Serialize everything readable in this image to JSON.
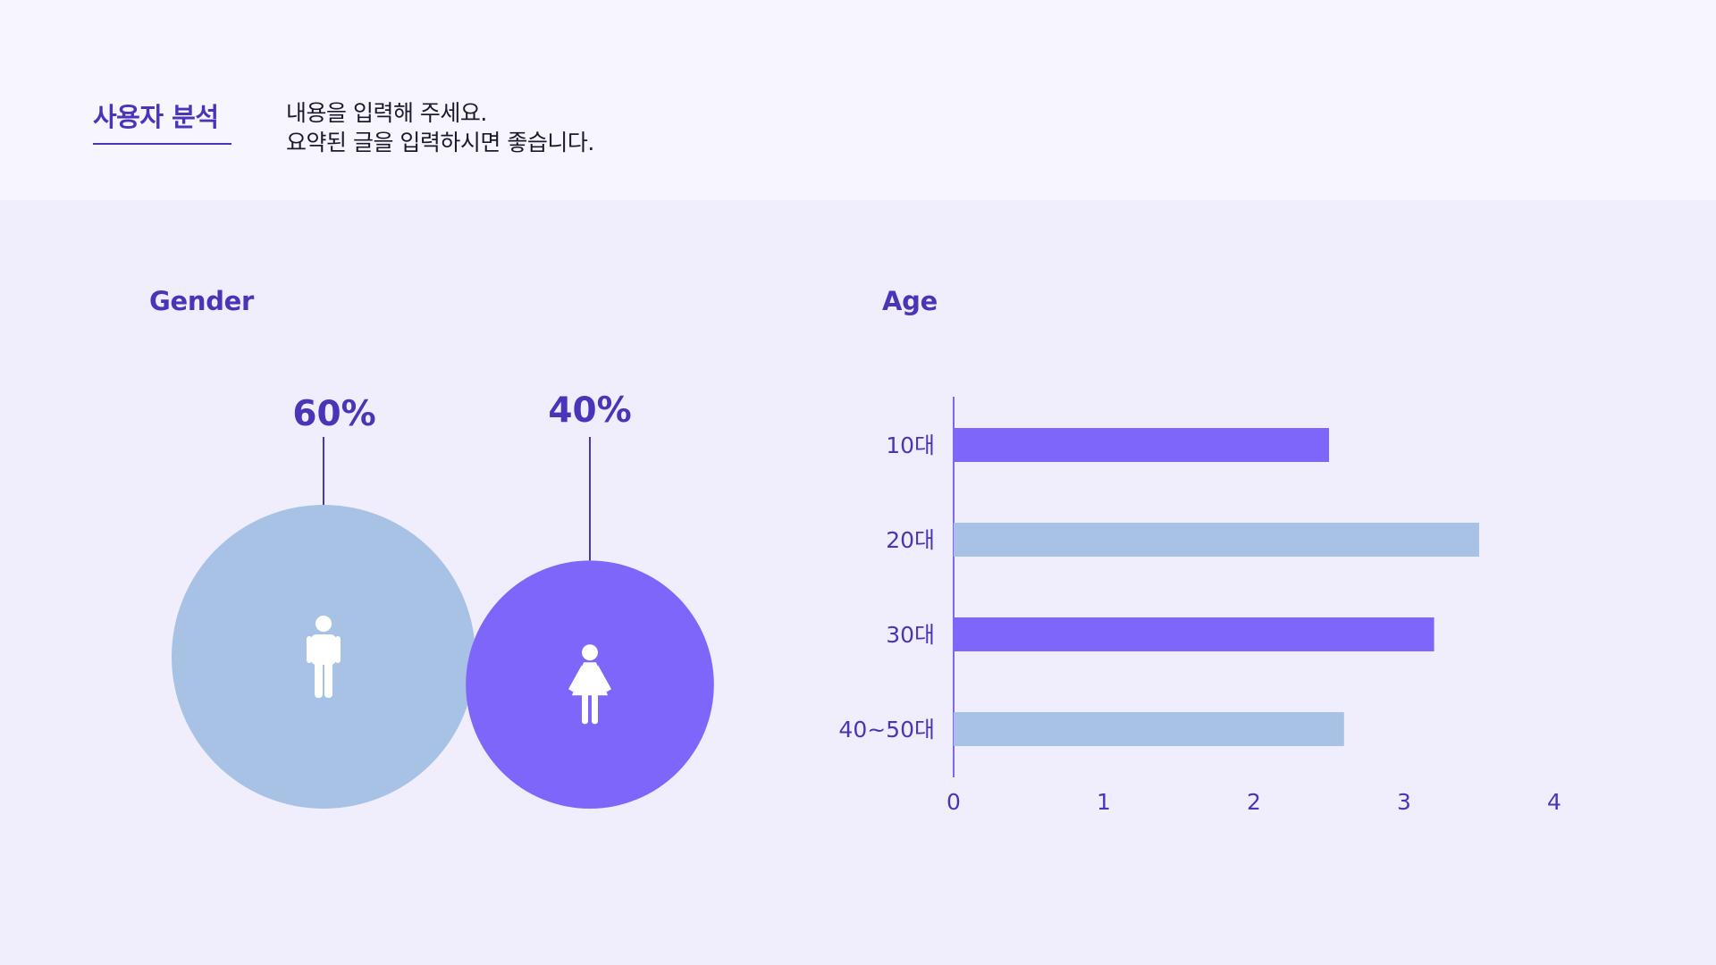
{
  "header": {
    "title": "사용자 분석",
    "summary_lines": [
      "내용을 입력해 주세요.",
      "요약된 글을 입력하시면 좋습니다."
    ]
  },
  "colors": {
    "primary": "#4a35b8",
    "purple": "#7e66fb",
    "lightblue": "#a8c2e5",
    "background": "#f0eefd",
    "header_bg": "#f7f6fe"
  },
  "icons": [
    "male-icon",
    "female-icon"
  ],
  "chart_data": [
    {
      "type": "bubble",
      "title": "Gender",
      "series": [
        {
          "icon": "male-icon",
          "value": 60,
          "label": "60%",
          "color": "#a8c2e5"
        },
        {
          "icon": "female-icon",
          "value": 40,
          "label": "40%",
          "color": "#7e66fb"
        }
      ]
    },
    {
      "type": "bar",
      "orientation": "horizontal",
      "title": "Age",
      "categories": [
        "10대",
        "20대",
        "30대",
        "40~50대"
      ],
      "values": [
        2.5,
        3.5,
        3.2,
        2.6
      ],
      "colors": [
        "#7e66fb",
        "#a8c2e5",
        "#7e66fb",
        "#a8c2e5"
      ],
      "xlim": [
        0,
        4
      ],
      "xticks": [
        "0",
        "1",
        "2",
        "3",
        "4"
      ],
      "grid": false,
      "legend": "none"
    }
  ]
}
